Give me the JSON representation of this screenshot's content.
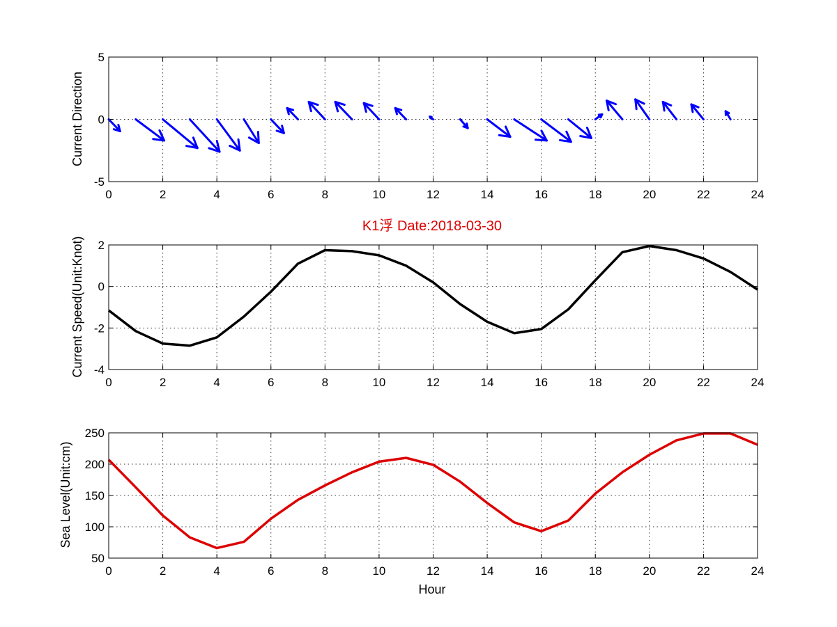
{
  "colors": {
    "direction": "#0000ff",
    "speed": "#000000",
    "sea_level": "#dd0000",
    "title": "#dd0000"
  },
  "chart_data": [
    {
      "type": "quiver",
      "ylabel": "Current Direction",
      "xlim": [
        0,
        24
      ],
      "ylim": [
        -5,
        5
      ],
      "xticks": [
        "0",
        "2",
        "4",
        "6",
        "8",
        "10",
        "12",
        "14",
        "16",
        "18",
        "20",
        "22",
        "24"
      ],
      "yticks": [
        "5",
        "0",
        "-5"
      ],
      "grid": true,
      "x": [
        0,
        1,
        2,
        3,
        4,
        5,
        6,
        7,
        8,
        9,
        10,
        11,
        12,
        13,
        14,
        15,
        16,
        17,
        18,
        19,
        20,
        21,
        22,
        23
      ],
      "u": [
        0.42,
        1.05,
        1.28,
        1.1,
        0.85,
        0.55,
        0.48,
        -0.4,
        -0.6,
        -0.62,
        -0.56,
        -0.4,
        -0.12,
        0.28,
        0.85,
        1.2,
        1.1,
        0.85,
        0.25,
        -0.58,
        -0.52,
        -0.5,
        -0.45,
        -0.18
      ],
      "v": [
        -0.95,
        -1.7,
        -2.3,
        -2.6,
        -2.5,
        -1.9,
        -1.1,
        0.9,
        1.4,
        1.4,
        1.3,
        0.9,
        0.22,
        -0.7,
        -1.4,
        -1.7,
        -1.8,
        -1.5,
        0.4,
        1.5,
        1.6,
        1.4,
        1.2,
        0.65
      ]
    },
    {
      "type": "line",
      "title": "K1浮    Date:2018-03-30",
      "ylabel": "Current Speed(Unit:Knot)",
      "xlim": [
        0,
        24
      ],
      "ylim": [
        -4,
        2
      ],
      "xticks": [
        "0",
        "2",
        "4",
        "6",
        "8",
        "10",
        "12",
        "14",
        "16",
        "18",
        "20",
        "22",
        "24"
      ],
      "yticks": [
        "2",
        "0",
        "-2",
        "-4"
      ],
      "grid": true,
      "x": [
        0,
        1,
        2,
        3,
        4,
        5,
        6,
        7,
        8,
        9,
        10,
        11,
        12,
        13,
        14,
        15,
        16,
        17,
        18,
        19,
        20,
        21,
        22,
        23,
        24
      ],
      "values": [
        -1.15,
        -2.15,
        -2.75,
        -2.85,
        -2.45,
        -1.45,
        -0.25,
        1.1,
        1.75,
        1.7,
        1.5,
        1.0,
        0.2,
        -0.85,
        -1.7,
        -2.25,
        -2.05,
        -1.1,
        0.3,
        1.65,
        1.95,
        1.75,
        1.35,
        0.7,
        -0.15
      ]
    },
    {
      "type": "line",
      "ylabel": "Sea Level(Unit:cm)",
      "xlabel": "Hour",
      "xlim": [
        0,
        24
      ],
      "ylim": [
        50,
        250
      ],
      "xticks": [
        "0",
        "2",
        "4",
        "6",
        "8",
        "10",
        "12",
        "14",
        "16",
        "18",
        "20",
        "22",
        "24"
      ],
      "yticks": [
        "250",
        "200",
        "150",
        "100",
        "50"
      ],
      "grid": true,
      "x": [
        0,
        1,
        2,
        3,
        4,
        5,
        6,
        7,
        8,
        9,
        10,
        11,
        12,
        13,
        14,
        15,
        16,
        17,
        18,
        19,
        20,
        21,
        22,
        23,
        24
      ],
      "values": [
        207,
        163,
        118,
        83,
        66,
        76,
        113,
        143,
        166,
        187,
        204,
        210,
        199,
        172,
        138,
        107,
        93,
        110,
        153,
        187,
        215,
        238,
        249,
        249,
        231
      ]
    }
  ]
}
